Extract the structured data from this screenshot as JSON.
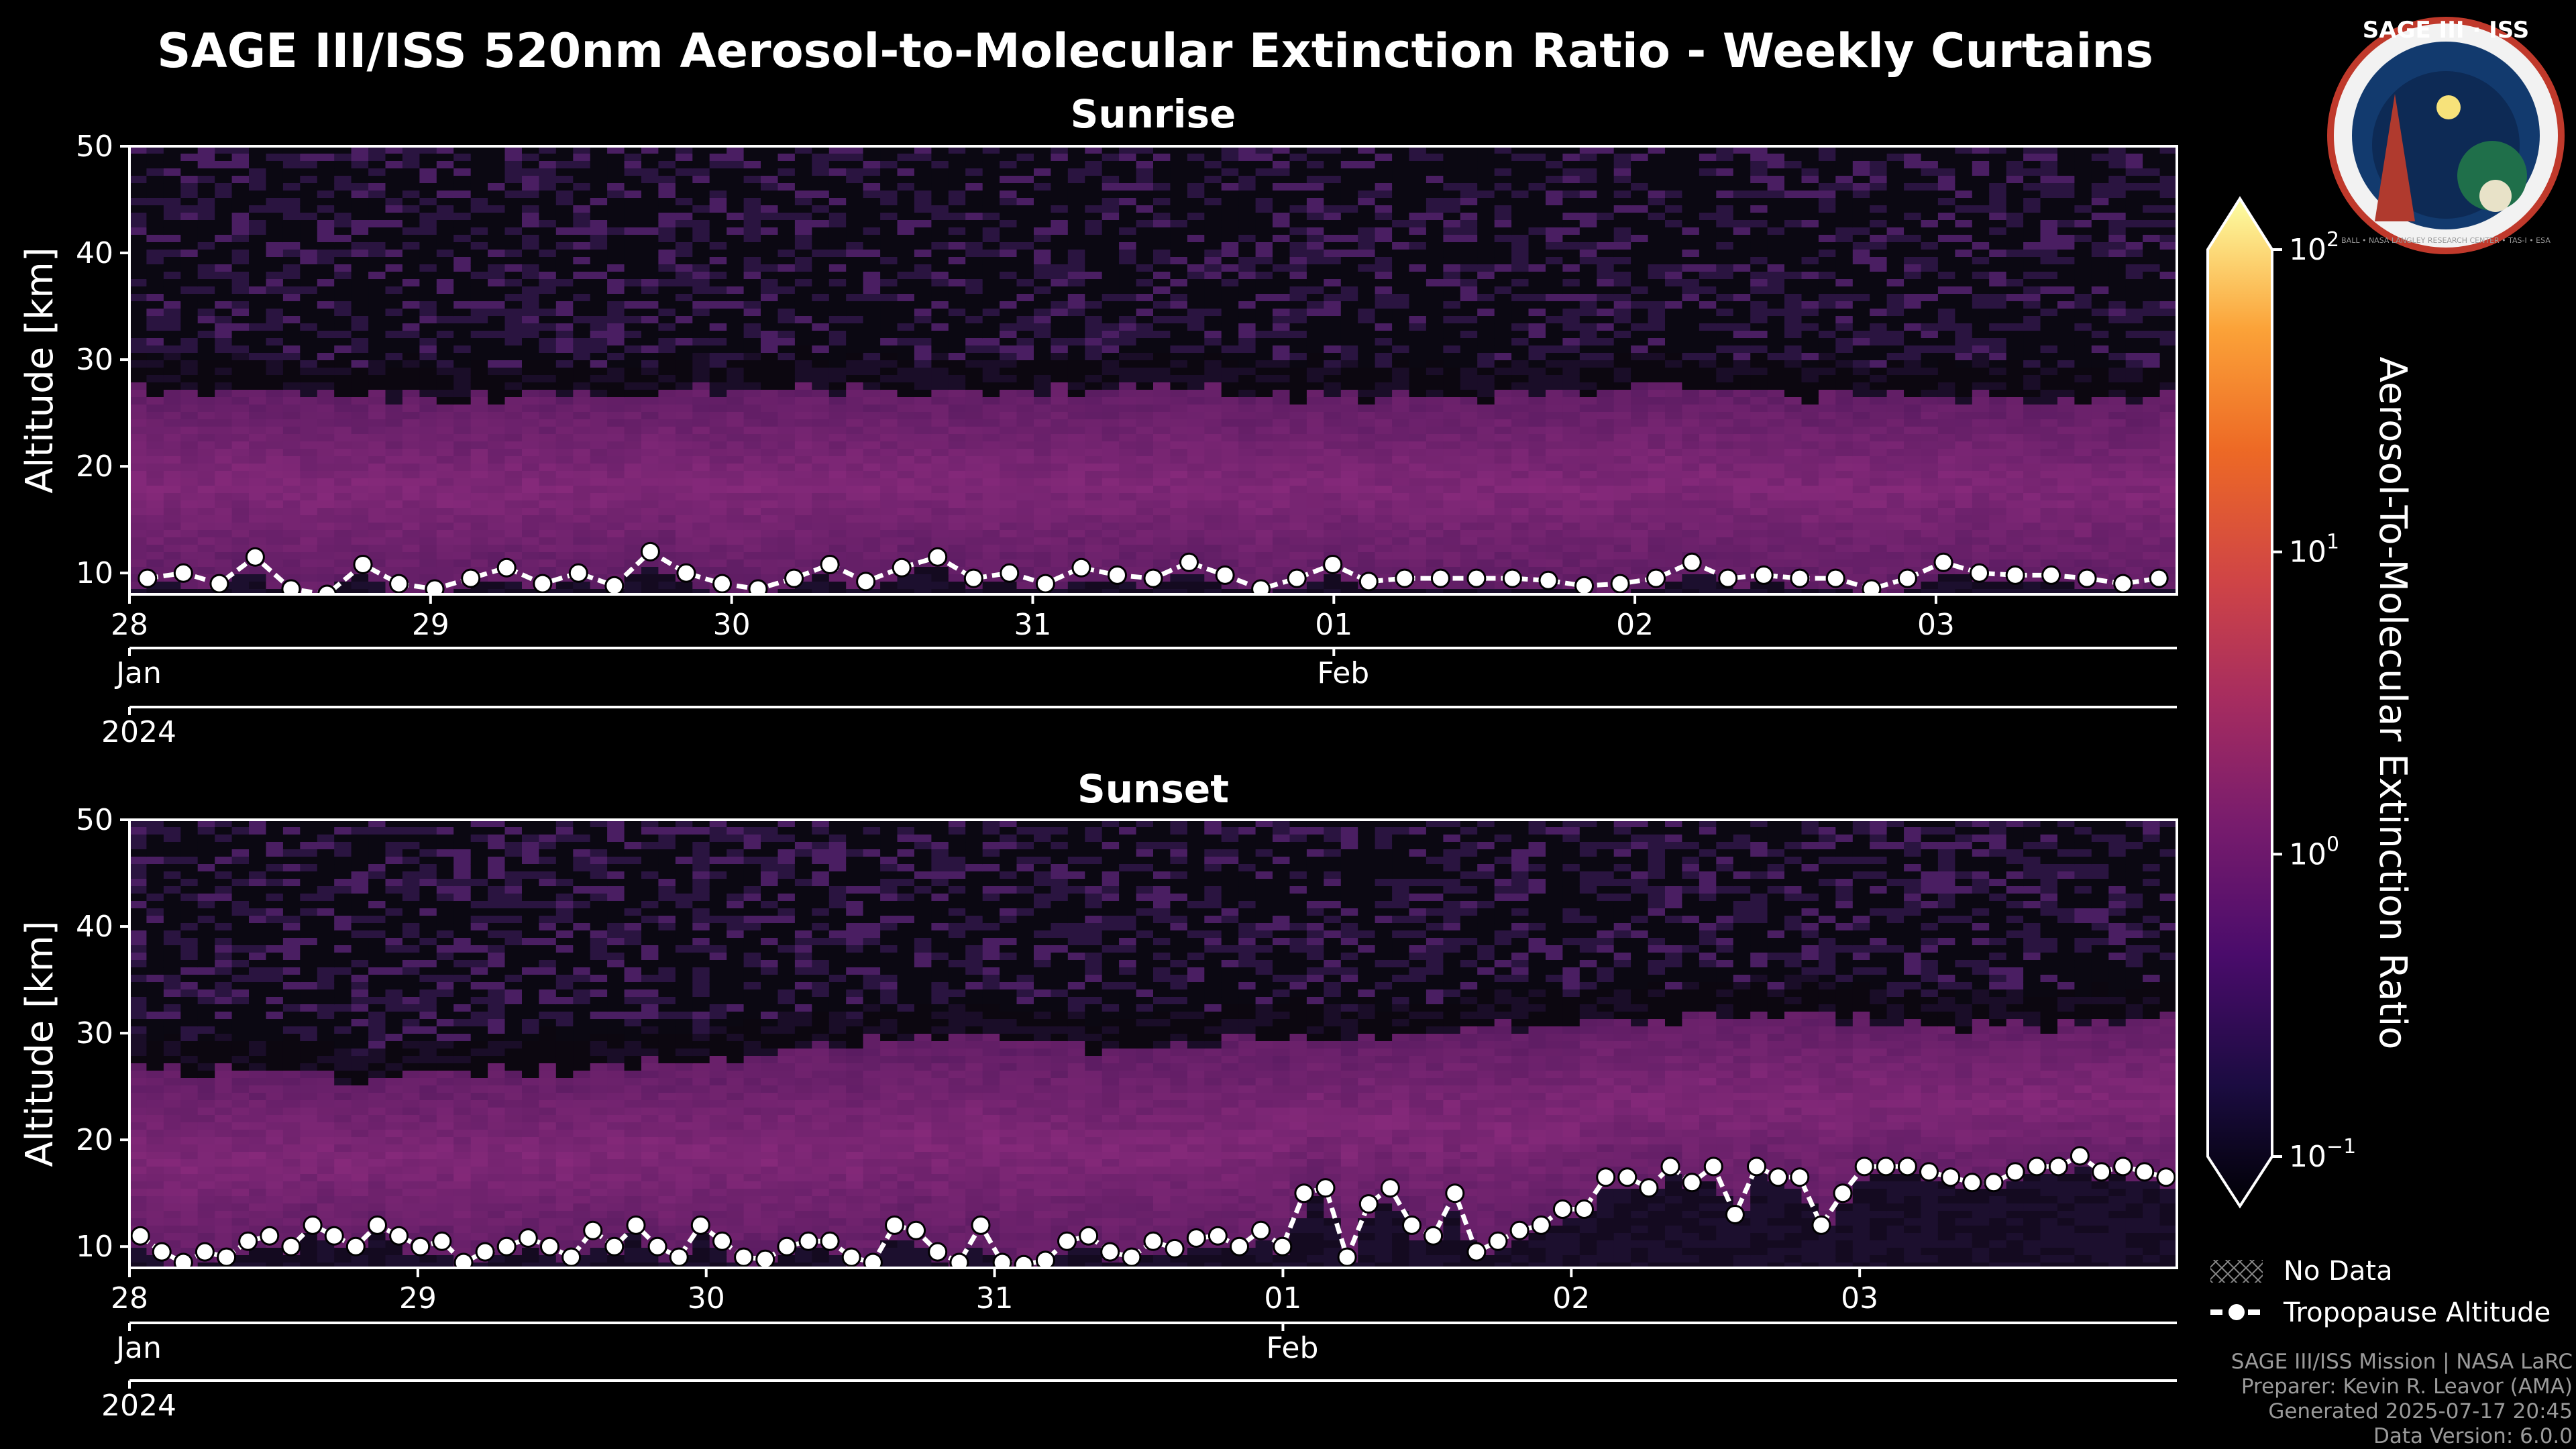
{
  "title": "SAGE III/ISS 520nm Aerosol-to-Molecular Extinction Ratio - Weekly Curtains",
  "logo": {
    "top_text": "SAGE III · ISS",
    "ring_text": "BALL • NASA LANGLEY RESEARCH CENTER • TAS-I • ESA"
  },
  "colors": {
    "background": "#000000",
    "band": "#5a1f6e",
    "high": "#fcffa4",
    "tropopause": "#ffffff"
  },
  "chart_data": [
    {
      "type": "heatmap",
      "title": "Sunrise",
      "ylabel": "Altitude [km]",
      "ylim": [
        8,
        50
      ],
      "yticks": [
        10,
        20,
        30,
        40,
        50
      ],
      "xlim_days": [
        0,
        6.8
      ],
      "day_ticks": [
        {
          "day": 0,
          "label": "28"
        },
        {
          "day": 1,
          "label": "29"
        },
        {
          "day": 2,
          "label": "30"
        },
        {
          "day": 3,
          "label": "31"
        },
        {
          "day": 4,
          "label": "01"
        },
        {
          "day": 5,
          "label": "02"
        },
        {
          "day": 6,
          "label": "03"
        }
      ],
      "month_ticks": [
        {
          "day": 0,
          "label": "Jan"
        },
        {
          "day": 4,
          "label": "Feb"
        }
      ],
      "year_tick": {
        "day": 0,
        "label": "2024"
      },
      "aerosol_layer_top_km": [
        28,
        27,
        27,
        27,
        27,
        28,
        27,
        27,
        28,
        27,
        27,
        27,
        28,
        27,
        27,
        27,
        27
      ],
      "tropopause_km": [
        9.5,
        10,
        9,
        11.5,
        8.5,
        8,
        10.8,
        9,
        8.5,
        9.5,
        10.5,
        9,
        10,
        8.8,
        12,
        10,
        9,
        8.5,
        9.5,
        10.8,
        9.2,
        10.5,
        11.5,
        9.5,
        10,
        9,
        10.5,
        9.8,
        9.5,
        11,
        9.8,
        8.5,
        9.5,
        10.8,
        9.2,
        9.5,
        9.5,
        9.5,
        9.5,
        9.3,
        8.8,
        9,
        9.5,
        11,
        9.5,
        9.8,
        9.5,
        9.5,
        8.5,
        9.5,
        11,
        10,
        9.8,
        9.8,
        9.5,
        9,
        9.5
      ]
    },
    {
      "type": "heatmap",
      "title": "Sunset",
      "ylabel": "Altitude [km]",
      "ylim": [
        8,
        50
      ],
      "yticks": [
        10,
        20,
        30,
        40,
        50
      ],
      "xlim_days": [
        0,
        7.1
      ],
      "day_ticks": [
        {
          "day": 0,
          "label": "28"
        },
        {
          "day": 1,
          "label": "29"
        },
        {
          "day": 2,
          "label": "30"
        },
        {
          "day": 3,
          "label": "31"
        },
        {
          "day": 4,
          "label": "01"
        },
        {
          "day": 5,
          "label": "02"
        },
        {
          "day": 6,
          "label": "03"
        }
      ],
      "month_ticks": [
        {
          "day": 0,
          "label": "Jan"
        },
        {
          "day": 4,
          "label": "Feb"
        }
      ],
      "year_tick": {
        "day": 0,
        "label": "2024"
      },
      "aerosol_layer_top_km": [
        27,
        27,
        26,
        27,
        27,
        28,
        29,
        30,
        29,
        29,
        30,
        30,
        31,
        31,
        32,
        32,
        31,
        31,
        32
      ],
      "tropopause_km": [
        11,
        9.5,
        8.5,
        9.5,
        9,
        10.5,
        11,
        10,
        12,
        11,
        10,
        12,
        11,
        10,
        10.5,
        8.5,
        9.5,
        10,
        10.8,
        10,
        9,
        11.5,
        10,
        12,
        10,
        9,
        12,
        10.5,
        9,
        8.8,
        10,
        10.5,
        10.5,
        9,
        8.5,
        12,
        11.5,
        9.5,
        8.5,
        12,
        8.5,
        8.3,
        8.7,
        10.5,
        11,
        9.5,
        9,
        10.5,
        9.8,
        10.8,
        11,
        10,
        11.5,
        10,
        15,
        15.5,
        9,
        14,
        15.5,
        12,
        11,
        15,
        9.5,
        10.5,
        11.5,
        12,
        13.5,
        13.5,
        16.5,
        16.5,
        15.5,
        17.5,
        16,
        17.5,
        13,
        17.5,
        16.5,
        16.5,
        12,
        15,
        17.5,
        17.5,
        17.5,
        17,
        16.5,
        16,
        16,
        17,
        17.5,
        17.5,
        18.5,
        17,
        17.5,
        17,
        16.5
      ]
    }
  ],
  "colorbar": {
    "label": "Aerosol-To-Molecular Extinction Ratio",
    "scale": "log",
    "range": [
      0.1,
      100
    ],
    "ticks": [
      {
        "base": "10",
        "exp": "2",
        "value": 100
      },
      {
        "base": "10",
        "exp": "1",
        "value": 10
      },
      {
        "base": "10",
        "exp": "0",
        "value": 1
      },
      {
        "base": "10",
        "exp": "−1",
        "value": 0.1
      }
    ]
  },
  "legend": [
    {
      "label": "No Data",
      "symbol": "hatch"
    },
    {
      "label": "Tropopause Altitude",
      "symbol": "dashed-line-dot"
    }
  ],
  "footer": [
    "SAGE III/ISS Mission | NASA LaRC",
    "Preparer: Kevin R. Leavor (AMA)",
    "Generated 2025-07-17 20:45",
    "Data Version: 6.0.0"
  ]
}
